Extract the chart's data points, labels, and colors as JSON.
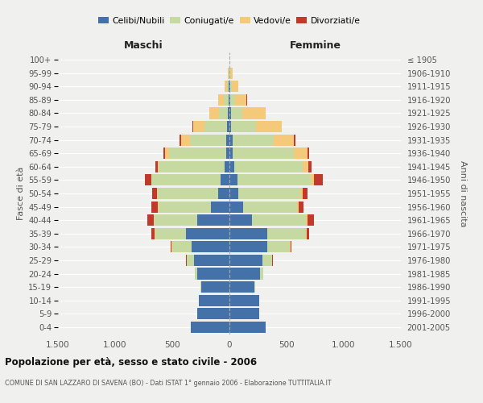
{
  "age_groups": [
    "0-4",
    "5-9",
    "10-14",
    "15-19",
    "20-24",
    "25-29",
    "30-34",
    "35-39",
    "40-44",
    "45-49",
    "50-54",
    "55-59",
    "60-64",
    "65-69",
    "70-74",
    "75-79",
    "80-84",
    "85-89",
    "90-94",
    "95-99",
    "100+"
  ],
  "birth_years": [
    "2001-2005",
    "1996-2000",
    "1991-1995",
    "1986-1990",
    "1981-1985",
    "1976-1980",
    "1971-1975",
    "1966-1970",
    "1961-1965",
    "1956-1960",
    "1951-1955",
    "1946-1950",
    "1941-1945",
    "1936-1940",
    "1931-1935",
    "1926-1930",
    "1921-1925",
    "1916-1920",
    "1911-1915",
    "1906-1910",
    "≤ 1905"
  ],
  "males_celibi": [
    340,
    280,
    270,
    250,
    280,
    310,
    330,
    380,
    280,
    160,
    100,
    80,
    40,
    30,
    25,
    20,
    15,
    10,
    5,
    2,
    0
  ],
  "males_coniugati": [
    0,
    0,
    0,
    5,
    20,
    60,
    170,
    270,
    380,
    460,
    530,
    600,
    580,
    500,
    320,
    200,
    80,
    40,
    15,
    5,
    0
  ],
  "males_vedovi": [
    0,
    0,
    0,
    0,
    5,
    5,
    5,
    5,
    5,
    5,
    5,
    5,
    10,
    30,
    80,
    100,
    80,
    50,
    20,
    5,
    0
  ],
  "males_divorziati": [
    0,
    0,
    0,
    0,
    0,
    5,
    10,
    30,
    50,
    55,
    40,
    55,
    20,
    20,
    10,
    5,
    0,
    0,
    0,
    0,
    0
  ],
  "females_nubili": [
    320,
    260,
    260,
    220,
    270,
    290,
    330,
    330,
    200,
    120,
    80,
    70,
    40,
    30,
    25,
    15,
    15,
    10,
    5,
    2,
    0
  ],
  "females_coniugate": [
    0,
    0,
    0,
    5,
    25,
    80,
    200,
    340,
    470,
    470,
    540,
    640,
    600,
    530,
    360,
    220,
    100,
    40,
    15,
    5,
    0
  ],
  "females_vedove": [
    0,
    0,
    0,
    0,
    0,
    5,
    5,
    5,
    10,
    15,
    20,
    30,
    50,
    120,
    180,
    220,
    200,
    100,
    60,
    20,
    0
  ],
  "females_divorziate": [
    0,
    0,
    0,
    0,
    0,
    5,
    10,
    20,
    60,
    45,
    40,
    80,
    30,
    20,
    10,
    5,
    5,
    5,
    0,
    0,
    0
  ],
  "color_celibi": "#4472a8",
  "color_coniugati": "#c5d9a0",
  "color_vedovi": "#f5c97a",
  "color_divorziati": "#c0392b",
  "title": "Popolazione per età, sesso e stato civile - 2006",
  "subtitle": "COMUNE DI SAN LAZZARO DI SAVENA (BO) - Dati ISTAT 1° gennaio 2006 - Elaborazione TUTTITALIA.IT",
  "label_maschi": "Maschi",
  "label_femmine": "Femmine",
  "ylabel_left": "Fasce di età",
  "ylabel_right": "Anni di nascita",
  "legend_labels": [
    "Celibi/Nubili",
    "Coniugati/e",
    "Vedovi/e",
    "Divorziati/e"
  ],
  "xtick_labels": [
    "1.500",
    "1.000",
    "500",
    "0",
    "500",
    "1.000",
    "1.500"
  ],
  "xlim": 1500,
  "bg_color": "#f0f0ee",
  "grid_color": "#ffffff"
}
